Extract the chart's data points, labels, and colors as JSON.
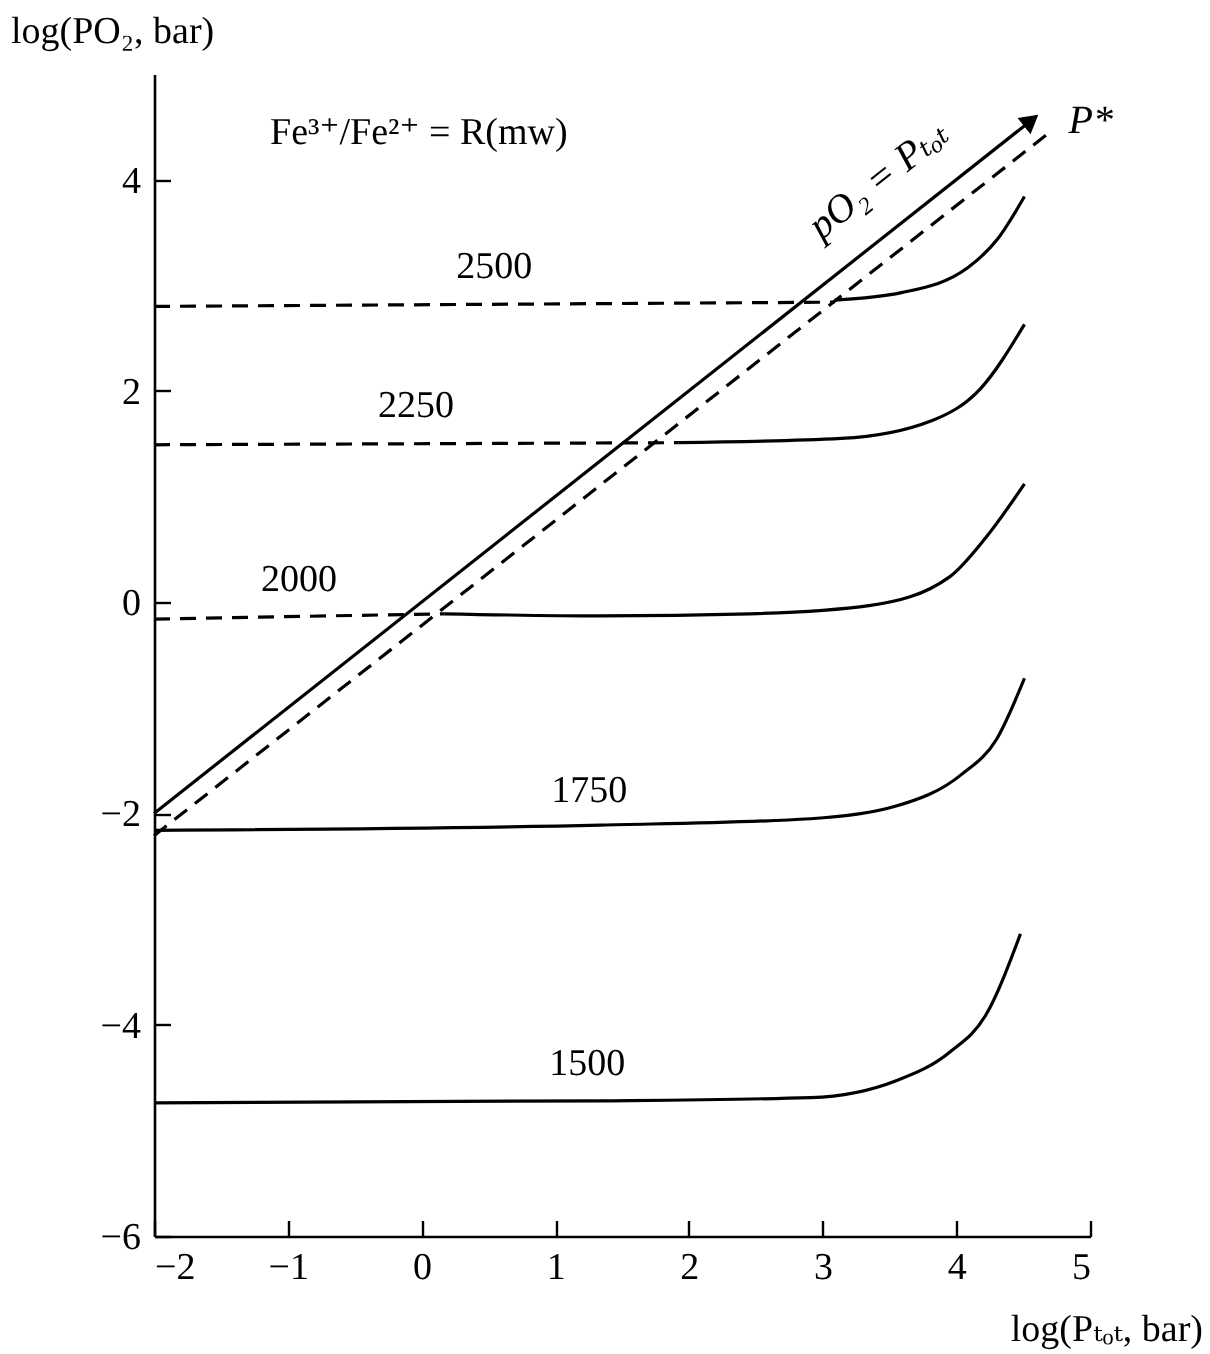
{
  "chart_data": {
    "type": "line",
    "xlabel": "log(Pₜₒₜ, bar)",
    "ylabel": "log(PO₂, bar)",
    "xlim": [
      -2,
      5
    ],
    "ylim": [
      -6,
      5
    ],
    "xticks": [
      -2,
      -1,
      0,
      1,
      2,
      3,
      4,
      5
    ],
    "yticks": [
      -6,
      -4,
      -2,
      0,
      2,
      4
    ],
    "annotations": [
      "Fe³⁺/Fe²⁺ = R(mw)"
    ],
    "series": [
      {
        "name": "pO₂ = Pₜₒₜ",
        "color": "#000000",
        "line_style": "solid",
        "x": [
          -2,
          4.56
        ],
        "values": [
          -2,
          4.56
        ]
      },
      {
        "name": "P*",
        "color": "#000000",
        "line_style": "dashed",
        "x": [
          -2,
          4.69
        ],
        "values": [
          -2.21,
          4.44
        ]
      },
      {
        "name": "2500",
        "color": "#000000",
        "line_style": "dashed",
        "x": [
          -2,
          3.09
        ],
        "values": [
          2.8,
          2.84
        ]
      },
      {
        "color": "#000000",
        "line_style": "solid",
        "x": [
          3.09,
          3.59,
          4.09,
          4.31,
          4.51
        ],
        "values": [
          2.86,
          2.93,
          3.17,
          3.44,
          3.84
        ]
      },
      {
        "name": "2250",
        "color": "#000000",
        "line_style": "dashed",
        "x": [
          -2,
          1.92
        ],
        "values": [
          1.49,
          1.51
        ]
      },
      {
        "color": "#000000",
        "line_style": "solid",
        "x": [
          1.92,
          3.14,
          3.82,
          4.18,
          4.51
        ],
        "values": [
          1.51,
          1.55,
          1.72,
          2.02,
          2.63
        ]
      },
      {
        "name": "2000",
        "color": "#000000",
        "line_style": "dashed",
        "x": [
          -2,
          0.17
        ],
        "values": [
          -0.16,
          -0.11
        ]
      },
      {
        "color": "#000000",
        "line_style": "solid",
        "x": [
          0.17,
          1.34,
          2.46,
          3.36,
          3.95,
          4.22,
          4.51
        ],
        "values": [
          -0.11,
          -0.13,
          -0.11,
          -0.03,
          0.24,
          0.61,
          1.12
        ]
      },
      {
        "name": "1750",
        "color": "#000000",
        "line_style": "solid",
        "x": [
          -2,
          1.34,
          2.91,
          3.55,
          4.04,
          4.3,
          4.51
        ],
        "values": [
          -2.16,
          -2.11,
          -2.05,
          -1.93,
          -1.63,
          -1.3,
          -0.72
        ]
      },
      {
        "name": "1500",
        "color": "#000000",
        "line_style": "solid",
        "x": [
          -2,
          1.34,
          2.91,
          3.55,
          3.95,
          4.22,
          4.48
        ],
        "values": [
          -4.74,
          -4.72,
          -4.69,
          -4.53,
          -4.26,
          -3.91,
          -3.14
        ]
      }
    ]
  }
}
